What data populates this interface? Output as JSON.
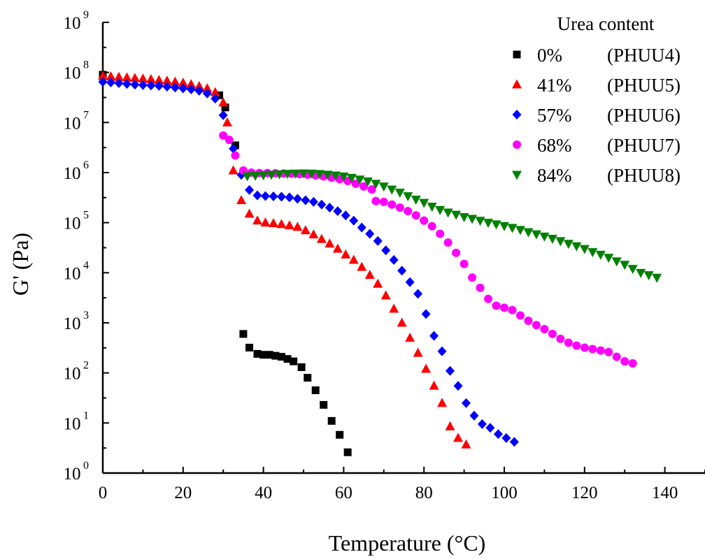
{
  "chart_data": {
    "type": "scatter",
    "title": "",
    "xlabel": "Temperature (°C)",
    "ylabel": "G' (Pa)",
    "xlim": [
      0,
      150
    ],
    "ylim": [
      1,
      1000000000
    ],
    "yscale": "log",
    "x_ticks": [
      "0",
      "20",
      "40",
      "60",
      "80",
      "100",
      "120",
      "140"
    ],
    "y_ticks": [
      {
        "base": "10",
        "exp": "0"
      },
      {
        "base": "10",
        "exp": "1"
      },
      {
        "base": "10",
        "exp": "2"
      },
      {
        "base": "10",
        "exp": "3"
      },
      {
        "base": "10",
        "exp": "4"
      },
      {
        "base": "10",
        "exp": "5"
      },
      {
        "base": "10",
        "exp": "6"
      },
      {
        "base": "10",
        "exp": "7"
      },
      {
        "base": "10",
        "exp": "8"
      },
      {
        "base": "10",
        "exp": "9"
      }
    ],
    "grid": false,
    "legend": {
      "title": "Urea content",
      "position": "top-right"
    },
    "series": [
      {
        "name": "0%",
        "label": "(PHUU4)",
        "marker": "square",
        "color": "#000000",
        "points": [
          [
            0,
            90000000.0
          ],
          [
            29,
            35000000.0
          ],
          [
            30.5,
            20000000.0
          ],
          [
            33,
            3500000.0
          ],
          [
            35,
            600
          ],
          [
            36.5,
            320
          ],
          [
            38.5,
            240
          ],
          [
            40,
            230
          ],
          [
            41.5,
            230
          ],
          [
            43,
            220
          ],
          [
            44.5,
            210
          ],
          [
            46,
            190
          ],
          [
            47.5,
            170
          ],
          [
            49.5,
            130
          ],
          [
            51,
            80
          ],
          [
            53,
            45
          ],
          [
            55,
            23
          ],
          [
            57,
            11
          ],
          [
            59,
            5.8
          ],
          [
            61,
            2.6
          ]
        ]
      },
      {
        "name": "41%",
        "label": "(PHUU5)",
        "marker": "triangle",
        "color": "#ff0000",
        "points": [
          [
            0,
            85000000.0
          ],
          [
            2,
            83000000.0
          ],
          [
            4,
            81000000.0
          ],
          [
            6,
            79000000.0
          ],
          [
            8,
            77000000.0
          ],
          [
            10,
            75000000.0
          ],
          [
            12,
            73000000.0
          ],
          [
            14,
            70000000.0
          ],
          [
            16,
            68000000.0
          ],
          [
            18,
            65000000.0
          ],
          [
            20,
            62000000.0
          ],
          [
            22,
            58000000.0
          ],
          [
            24,
            53000000.0
          ],
          [
            26,
            48000000.0
          ],
          [
            28,
            40000000.0
          ],
          [
            30,
            25000000.0
          ],
          [
            31,
            10000000.0
          ],
          [
            32.5,
            1100000.0
          ],
          [
            34.5,
            280000.0
          ],
          [
            36.5,
            150000.0
          ],
          [
            38.5,
            110000.0
          ],
          [
            40.5,
            100000.0
          ],
          [
            42.5,
            97000.0
          ],
          [
            44.5,
            93000.0
          ],
          [
            46.5,
            88000.0
          ],
          [
            48.5,
            82000.0
          ],
          [
            50.5,
            70000.0
          ],
          [
            52.5,
            58000.0
          ],
          [
            54.5,
            47000.0
          ],
          [
            56.5,
            38000.0
          ],
          [
            58.5,
            30000.0
          ],
          [
            60.5,
            23000.0
          ],
          [
            62.5,
            18000.0
          ],
          [
            64.5,
            13000.0
          ],
          [
            66.5,
            9000.0
          ],
          [
            68.5,
            6000.0
          ],
          [
            70.5,
            3500.0
          ],
          [
            72.5,
            1900.0
          ],
          [
            74.5,
            1000.0
          ],
          [
            76.5,
            500
          ],
          [
            78.5,
            250
          ],
          [
            80.5,
            120
          ],
          [
            82.5,
            55
          ],
          [
            84.5,
            25
          ],
          [
            86.5,
            8.5
          ],
          [
            88.5,
            5.0
          ],
          [
            90.5,
            3.7
          ]
        ]
      },
      {
        "name": "57%",
        "label": "(PHUU6)",
        "marker": "diamond",
        "color": "#0000ff",
        "points": [
          [
            0,
            65000000.0
          ],
          [
            2,
            63000000.0
          ],
          [
            4,
            61000000.0
          ],
          [
            6,
            59000000.0
          ],
          [
            8,
            57000000.0
          ],
          [
            10,
            56000000.0
          ],
          [
            12,
            55000000.0
          ],
          [
            14,
            54000000.0
          ],
          [
            16,
            52000000.0
          ],
          [
            18,
            50000000.0
          ],
          [
            20,
            48000000.0
          ],
          [
            22,
            46000000.0
          ],
          [
            24,
            43000000.0
          ],
          [
            26,
            38000000.0
          ],
          [
            28,
            30000000.0
          ],
          [
            30,
            14000000.0
          ],
          [
            32.5,
            3000000.0
          ],
          [
            34.5,
            900000.0
          ],
          [
            36.5,
            450000.0
          ],
          [
            38.5,
            350000.0
          ],
          [
            40.5,
            340000.0
          ],
          [
            42.5,
            335000.0
          ],
          [
            44.5,
            330000.0
          ],
          [
            46.5,
            320000.0
          ],
          [
            48.5,
            300000.0
          ],
          [
            50.5,
            280000.0
          ],
          [
            52.5,
            260000.0
          ],
          [
            54.5,
            230000.0
          ],
          [
            56.5,
            200000.0
          ],
          [
            58.5,
            170000.0
          ],
          [
            60.5,
            140000.0
          ],
          [
            62.5,
            110000.0
          ],
          [
            64.5,
            80000.0
          ],
          [
            66.5,
            60000.0
          ],
          [
            68.5,
            43000.0
          ],
          [
            70.5,
            28000.0
          ],
          [
            72.5,
            18000.0
          ],
          [
            74.5,
            11000.0
          ],
          [
            76.5,
            6500.0
          ],
          [
            78.5,
            3800.0
          ],
          [
            80.5,
            1500.0
          ],
          [
            82.5,
            550
          ],
          [
            84.5,
            270
          ],
          [
            86.5,
            110
          ],
          [
            88.5,
            55
          ],
          [
            90.5,
            25
          ],
          [
            92.5,
            14
          ],
          [
            94.5,
            9.5
          ],
          [
            96.5,
            8
          ],
          [
            98.5,
            6
          ],
          [
            100.5,
            5
          ],
          [
            102.5,
            4.2
          ]
        ]
      },
      {
        "name": "68%",
        "label": "(PHUU7)",
        "marker": "circle",
        "color": "#ff00ff",
        "points": [
          [
            30,
            5500000.0
          ],
          [
            31.5,
            4500000.0
          ],
          [
            33,
            2200000.0
          ],
          [
            35,
            1100000.0
          ],
          [
            37,
            1000000.0
          ],
          [
            39,
            980000.0
          ],
          [
            41,
            980000.0
          ],
          [
            43,
            970000.0
          ],
          [
            45,
            960000.0
          ],
          [
            47,
            950000.0
          ],
          [
            49,
            930000.0
          ],
          [
            51,
            910000.0
          ],
          [
            53,
            880000.0
          ],
          [
            55,
            840000.0
          ],
          [
            57,
            790000.0
          ],
          [
            59,
            740000.0
          ],
          [
            61,
            680000.0
          ],
          [
            63,
            600000.0
          ],
          [
            65,
            530000.0
          ],
          [
            67,
            460000.0
          ],
          [
            68,
            270000.0
          ],
          [
            70,
            260000.0
          ],
          [
            72,
            230000.0
          ],
          [
            74,
            200000.0
          ],
          [
            76,
            170000.0
          ],
          [
            78,
            140000.0
          ],
          [
            80,
            110000.0
          ],
          [
            82,
            85000.0
          ],
          [
            84,
            60000.0
          ],
          [
            86,
            40000.0
          ],
          [
            88,
            25000.0
          ],
          [
            90,
            15000.0
          ],
          [
            92,
            8000.0
          ],
          [
            94,
            5000.0
          ],
          [
            96,
            3000.0
          ],
          [
            98,
            2200.0
          ],
          [
            100,
            2000.0
          ],
          [
            102,
            1800.0
          ],
          [
            104,
            1400.0
          ],
          [
            106,
            1100.0
          ],
          [
            108,
            900
          ],
          [
            110,
            750
          ],
          [
            112,
            600
          ],
          [
            114,
            480
          ],
          [
            116,
            400
          ],
          [
            118,
            350
          ],
          [
            120,
            320
          ],
          [
            122,
            300
          ],
          [
            124,
            280
          ],
          [
            126,
            260
          ],
          [
            128,
            210
          ],
          [
            130,
            170
          ],
          [
            132,
            155
          ]
        ]
      },
      {
        "name": "84%",
        "label": "(PHUU8)",
        "marker": "triangle-down",
        "color": "#008000",
        "points": [
          [
            36,
            850000.0
          ],
          [
            38,
            870000.0
          ],
          [
            40,
            890000.0
          ],
          [
            42,
            910000.0
          ],
          [
            44,
            930000.0
          ],
          [
            46,
            950000.0
          ],
          [
            48,
            960000.0
          ],
          [
            50,
            970000.0
          ],
          [
            52,
            960000.0
          ],
          [
            54,
            940000.0
          ],
          [
            56,
            910000.0
          ],
          [
            58,
            880000.0
          ],
          [
            60,
            840000.0
          ],
          [
            62,
            790000.0
          ],
          [
            64,
            730000.0
          ],
          [
            66,
            670000.0
          ],
          [
            68,
            600000.0
          ],
          [
            70,
            530000.0
          ],
          [
            72,
            460000.0
          ],
          [
            74,
            400000.0
          ],
          [
            76,
            340000.0
          ],
          [
            78,
            290000.0
          ],
          [
            80,
            250000.0
          ],
          [
            82,
            210000.0
          ],
          [
            84,
            180000.0
          ],
          [
            86,
            160000.0
          ],
          [
            88,
            145000.0
          ],
          [
            90,
            130000.0
          ],
          [
            92,
            120000.0
          ],
          [
            94,
            110000.0
          ],
          [
            96,
            100000.0
          ],
          [
            98,
            93000.0
          ],
          [
            100,
            86000.0
          ],
          [
            102,
            79000.0
          ],
          [
            104,
            72000.0
          ],
          [
            106,
            65000.0
          ],
          [
            108,
            59000.0
          ],
          [
            110,
            53000.0
          ],
          [
            112,
            48000.0
          ],
          [
            114,
            43000.0
          ],
          [
            116,
            38000.0
          ],
          [
            118,
            34000.0
          ],
          [
            120,
            30000.0
          ],
          [
            122,
            26000.0
          ],
          [
            124,
            23000.0
          ],
          [
            126,
            20000.0
          ],
          [
            128,
            17000.0
          ],
          [
            130,
            14500.0
          ],
          [
            132,
            12000.0
          ],
          [
            134,
            10000.0
          ],
          [
            136,
            9000.0
          ],
          [
            138,
            8000.0
          ]
        ]
      }
    ]
  }
}
